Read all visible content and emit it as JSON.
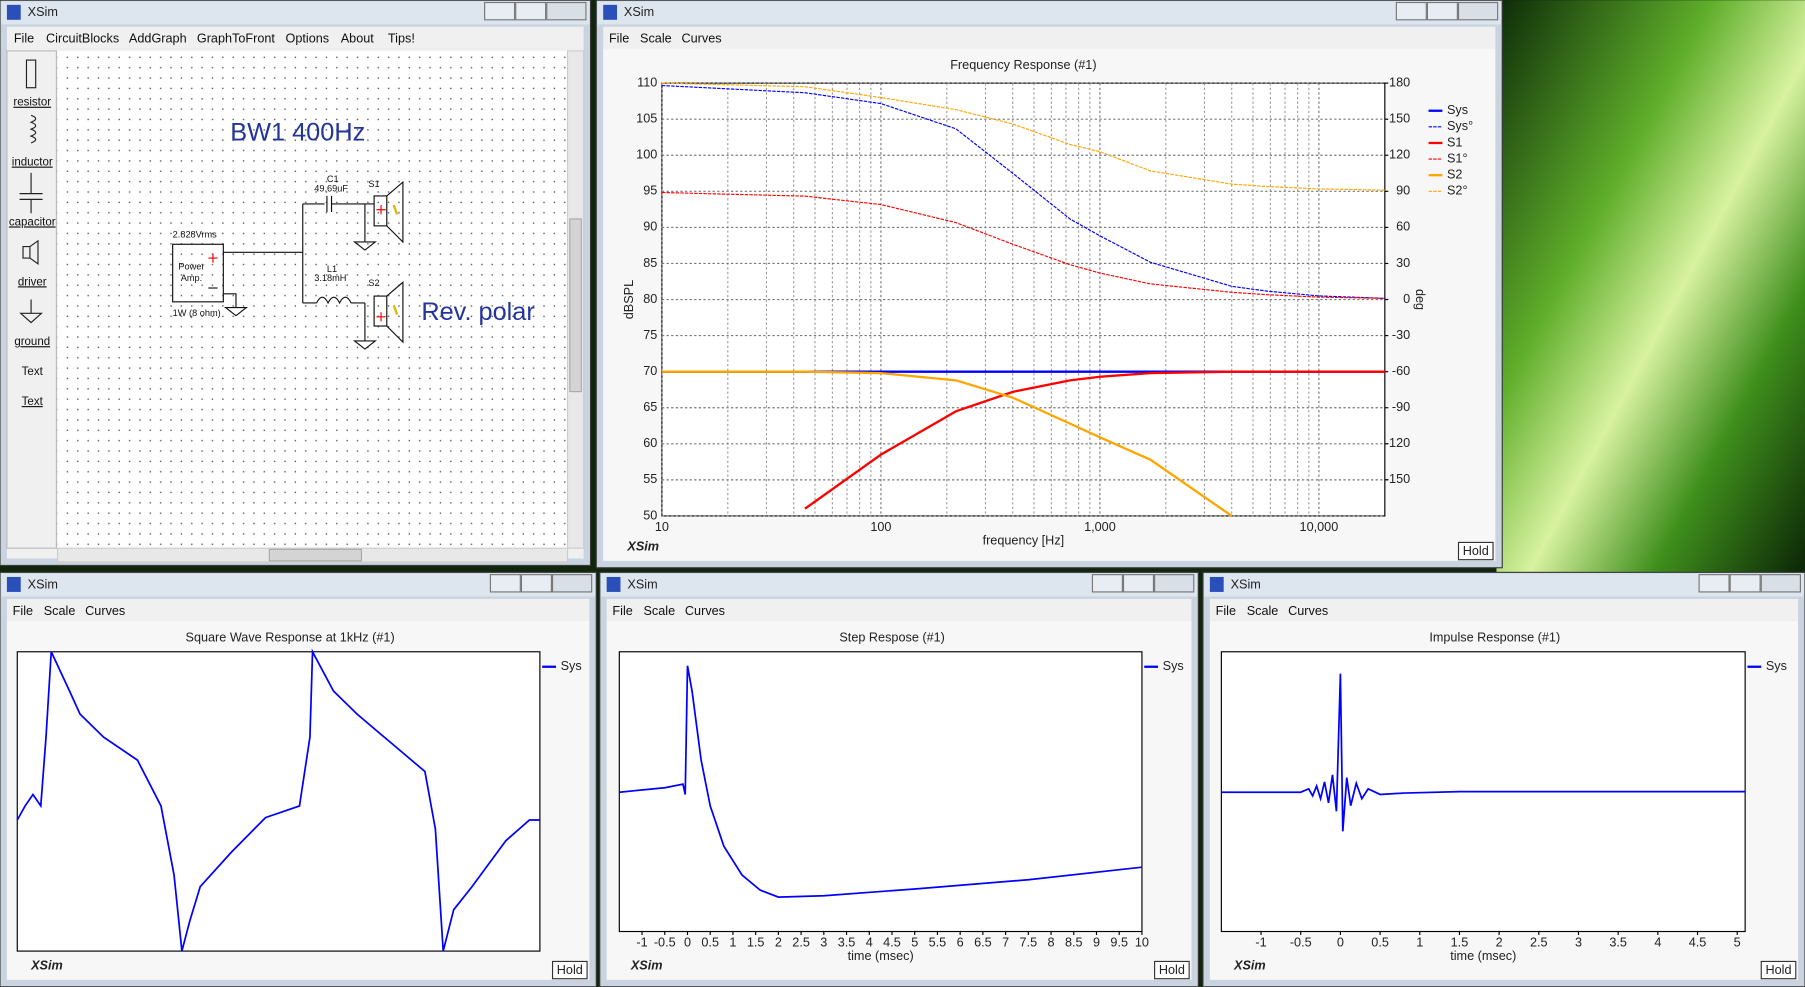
{
  "schematic_window": {
    "title": "XSim",
    "menu": [
      "File",
      "CircuitBlocks",
      "AddGraph",
      "GraphToFront",
      "Options",
      "About",
      "Tips!"
    ],
    "tools": [
      "resistor",
      "inductor",
      "capacitor",
      "driver",
      "ground",
      "Text",
      "Text"
    ],
    "canvas": {
      "heading": "BW1 400Hz",
      "note": "Rev. polar",
      "source": [
        "2.828Vrms",
        "Power",
        "Amp.",
        "1W (8 ohm)"
      ],
      "c1": [
        "C1",
        "49.69uF"
      ],
      "l1": [
        "L1",
        "3.18mH"
      ],
      "s1": "S1",
      "s2": "S2"
    }
  },
  "chart_windows": [
    {
      "title_bar": "XSim",
      "menu": [
        "File",
        "Scale",
        "Curves"
      ],
      "brand": "XSim",
      "hold": "Hold"
    },
    {
      "title_bar": "XSim",
      "menu": [
        "File",
        "Scale",
        "Curves"
      ],
      "brand": "XSim",
      "hold": "Hold"
    },
    {
      "title_bar": "XSim",
      "menu": [
        "File",
        "Scale",
        "Curves"
      ],
      "brand": "XSim",
      "hold": "Hold"
    },
    {
      "title_bar": "XSim",
      "menu": [
        "File",
        "Scale",
        "Curves"
      ],
      "brand": "XSim",
      "hold": "Hold"
    }
  ],
  "chart_data": [
    {
      "type": "line",
      "title": "Frequency Response (#1)",
      "xlabel": "frequency [Hz]",
      "ylabel": "dBSPL",
      "y2label": "deg",
      "log_x": true,
      "grid": true,
      "legend": "right",
      "x": [
        10,
        45,
        100,
        220,
        400,
        730,
        1000,
        1700,
        4000,
        5800,
        10000,
        20000
      ],
      "xlim": [
        10,
        20000
      ],
      "xticks": [
        10,
        100,
        {
          "value": 1000,
          "label": "1,000"
        },
        {
          "value": 10000,
          "label": "10,000"
        }
      ],
      "xminor": [
        20,
        30,
        40,
        50,
        60,
        70,
        80,
        90,
        200,
        300,
        400,
        500,
        600,
        700,
        800,
        900,
        2000,
        3000,
        4000,
        5000,
        6000,
        7000,
        8000,
        9000
      ],
      "ylim": [
        50,
        110
      ],
      "yticks": [
        50,
        55,
        60,
        65,
        70,
        75,
        80,
        85,
        90,
        95,
        100,
        105,
        110
      ],
      "y2lim": [
        -180,
        180
      ],
      "y2ticks": [
        180,
        150,
        120,
        90,
        60,
        30,
        0,
        -30,
        -60,
        -90,
        -120,
        -150
      ],
      "series": [
        {
          "name": "Sys",
          "color": "#0000ff",
          "values": [
            70,
            70,
            70,
            70,
            70,
            70,
            70,
            70,
            70,
            70,
            70,
            70
          ]
        },
        {
          "name": "Sys°",
          "color": "#0000ff",
          "axis": "y2",
          "dashed": true,
          "values": [
            178,
            172,
            163,
            142,
            105,
            67,
            53,
            31,
            11,
            7,
            3,
            1
          ]
        },
        {
          "name": "S1",
          "color": "#ff0000",
          "values": [
            null,
            51,
            58.5,
            64.5,
            67.2,
            68.8,
            69.3,
            69.8,
            70,
            70,
            70,
            70
          ]
        },
        {
          "name": "S1°",
          "color": "#ff0000",
          "axis": "y2",
          "dashed": true,
          "values": [
            89,
            86,
            79,
            64,
            46,
            29,
            22,
            13,
            6,
            4,
            2,
            1
          ]
        },
        {
          "name": "S2",
          "color": "#ffa500",
          "values": [
            70,
            70,
            69.8,
            68.8,
            66.4,
            62.8,
            60.9,
            57.8,
            50,
            null,
            null,
            null
          ]
        },
        {
          "name": "S2°",
          "color": "#ffa500",
          "axis": "y2",
          "dashed": true,
          "values": [
            180,
            177,
            168,
            158,
            146,
            129,
            123,
            107,
            96,
            94,
            92,
            91
          ]
        }
      ]
    },
    {
      "type": "line",
      "title": "Square Wave Response at 1kHz (#1)",
      "legend": "right",
      "x": [
        0,
        0.03,
        0.06,
        0.09,
        0.11,
        0.13,
        0.2,
        0.24,
        0.33,
        0.46,
        0.55,
        0.6,
        0.63,
        0.66,
        0.7,
        0.82,
        0.95,
        1.08,
        1.12,
        1.13,
        1.21,
        1.3,
        1.43,
        1.56,
        1.6,
        1.63,
        1.67,
        1.74,
        1.87,
        1.96,
        2
      ],
      "xlim": [
        0,
        2
      ],
      "ylim": [
        0,
        100
      ],
      "series": [
        {
          "name": "Sys",
          "color": "#0000ff",
          "values": [
            43.8,
            48.5,
            52.3,
            48.5,
            71.5,
            100,
            86.9,
            79.2,
            71.5,
            63.8,
            48.5,
            25.4,
            0,
            10,
            21.5,
            33.1,
            44.6,
            48.5,
            71.5,
            100,
            86.9,
            79.2,
            69.6,
            60,
            40.8,
            0,
            13.8,
            21.5,
            36.9,
            43.8,
            43.8
          ]
        }
      ]
    },
    {
      "type": "line",
      "title": "Step Respose (#1)",
      "xlabel": "time (msec)",
      "legend": "right",
      "x": [
        -1.5,
        -0.5,
        -0.1,
        -0.05,
        0,
        0.1,
        0.3,
        0.5,
        0.8,
        1.2,
        1.6,
        2,
        3,
        5,
        7.5,
        10
      ],
      "xlim": [
        -1.5,
        10
      ],
      "xticks": [
        -1,
        -0.5,
        0,
        0.5,
        1,
        1.5,
        2,
        2.5,
        3,
        3.5,
        4,
        4.5,
        5,
        5.5,
        6,
        6.5,
        7,
        7.5,
        8,
        8.5,
        9,
        9.5,
        10
      ],
      "ylim": [
        0,
        100
      ],
      "series": [
        {
          "name": "Sys",
          "color": "#0000ff",
          "values": [
            49.8,
            51.4,
            52.7,
            49,
            95,
            86,
            61.3,
            44.9,
            30.5,
            20.2,
            14.8,
            12.3,
            12.8,
            15.2,
            18.5,
            23
          ]
        }
      ]
    },
    {
      "type": "line",
      "title": "Impulse Response (#1)",
      "xlabel": "time (msec)",
      "legend": "right",
      "x": [
        -1.5,
        -0.5,
        -0.4,
        -0.35,
        -0.3,
        -0.25,
        -0.2,
        -0.15,
        -0.1,
        -0.05,
        0,
        0.03,
        0.08,
        0.13,
        0.2,
        0.27,
        0.35,
        0.5,
        0.8,
        1.5,
        5.1
      ],
      "xlim": [
        -1.5,
        5.1
      ],
      "xticks": [
        -1,
        -0.5,
        0,
        0.5,
        1,
        1.5,
        2,
        2.5,
        3,
        3.5,
        4,
        4.5,
        5
      ],
      "ylim": [
        0,
        100
      ],
      "series": [
        {
          "name": "Sys",
          "color": "#0000ff",
          "values": [
            49.8,
            49.8,
            51,
            48.5,
            52,
            47.5,
            53.5,
            46,
            56,
            43,
            92.2,
            35.8,
            55,
            45,
            53,
            47.5,
            51,
            49,
            49.5,
            50,
            50
          ]
        }
      ]
    }
  ]
}
